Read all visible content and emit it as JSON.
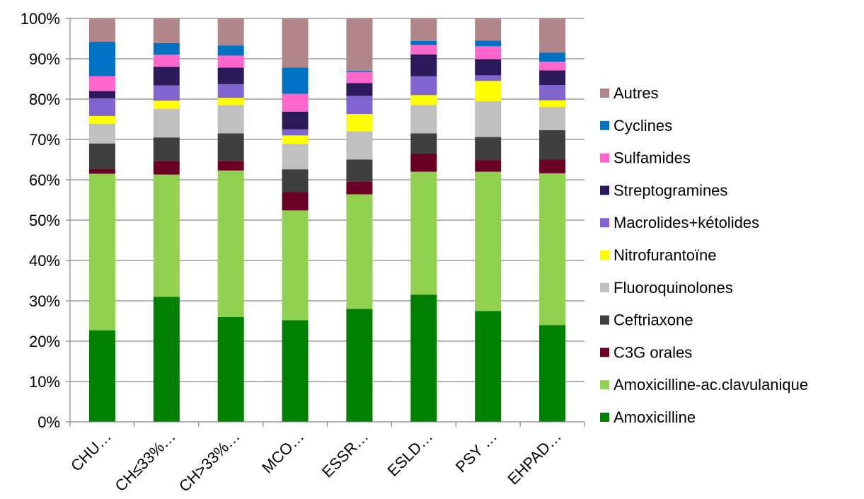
{
  "chart_data": {
    "type": "bar",
    "stacked": true,
    "percent_scale": true,
    "title": "",
    "xlabel": "",
    "ylabel": "",
    "ylim": [
      0,
      100
    ],
    "ytick_step": 10,
    "ytick_labels": [
      "0%",
      "10%",
      "20%",
      "30%",
      "40%",
      "50%",
      "60%",
      "70%",
      "80%",
      "90%",
      "100%"
    ],
    "grid": true,
    "legend_position": "right",
    "categories": [
      "CHU…",
      "CH≤33%…",
      "CH>33%…",
      "MCO…",
      "ESSR…",
      "ESLD…",
      "PSY …",
      "EHPAD…"
    ],
    "series": [
      {
        "name": "Amoxicilline",
        "color": "#008000",
        "values": [
          22.7,
          31.0,
          26.0,
          25.2,
          28.0,
          31.5,
          27.5,
          24.0
        ]
      },
      {
        "name": "Amoxicilline-ac.clavulanique",
        "color": "#92D050",
        "values": [
          38.8,
          30.3,
          36.3,
          27.2,
          28.4,
          30.5,
          34.5,
          37.6
        ]
      },
      {
        "name": "C3G orales",
        "color": "#6B0026",
        "values": [
          1.2,
          3.4,
          2.4,
          4.6,
          3.2,
          4.5,
          2.9,
          3.4
        ]
      },
      {
        "name": "Ceftriaxone",
        "color": "#3F3F3F",
        "values": [
          6.3,
          5.8,
          6.8,
          5.6,
          5.4,
          5.0,
          5.7,
          7.3
        ]
      },
      {
        "name": "Fluoroquinolones",
        "color": "#BFBFBF",
        "values": [
          4.9,
          7.1,
          7.0,
          6.3,
          7.0,
          7.0,
          8.9,
          5.8
        ]
      },
      {
        "name": "Nitrofurantoïne",
        "color": "#FFFF00",
        "values": [
          1.9,
          2.0,
          1.8,
          2.1,
          4.3,
          2.5,
          5.0,
          1.6
        ]
      },
      {
        "name": "Macrolides+kétolides",
        "color": "#8064D0",
        "values": [
          4.4,
          3.8,
          3.4,
          1.5,
          4.5,
          4.7,
          1.4,
          3.8
        ]
      },
      {
        "name": "Streptogramines",
        "color": "#2B1A5A",
        "values": [
          1.8,
          4.6,
          4.1,
          4.4,
          3.2,
          5.4,
          4.0,
          3.6
        ]
      },
      {
        "name": "Sulfamides",
        "color": "#FF66CC",
        "values": [
          3.7,
          3.0,
          3.0,
          4.4,
          2.7,
          2.3,
          3.2,
          2.2
        ]
      },
      {
        "name": "Cyclines",
        "color": "#0070C0",
        "values": [
          8.5,
          2.9,
          2.5,
          6.5,
          0.3,
          1.0,
          1.4,
          2.2
        ]
      },
      {
        "name": "Autres",
        "color": "#B0868B",
        "values": [
          5.8,
          6.1,
          6.7,
          12.2,
          13.0,
          5.6,
          5.5,
          8.5
        ]
      }
    ]
  }
}
